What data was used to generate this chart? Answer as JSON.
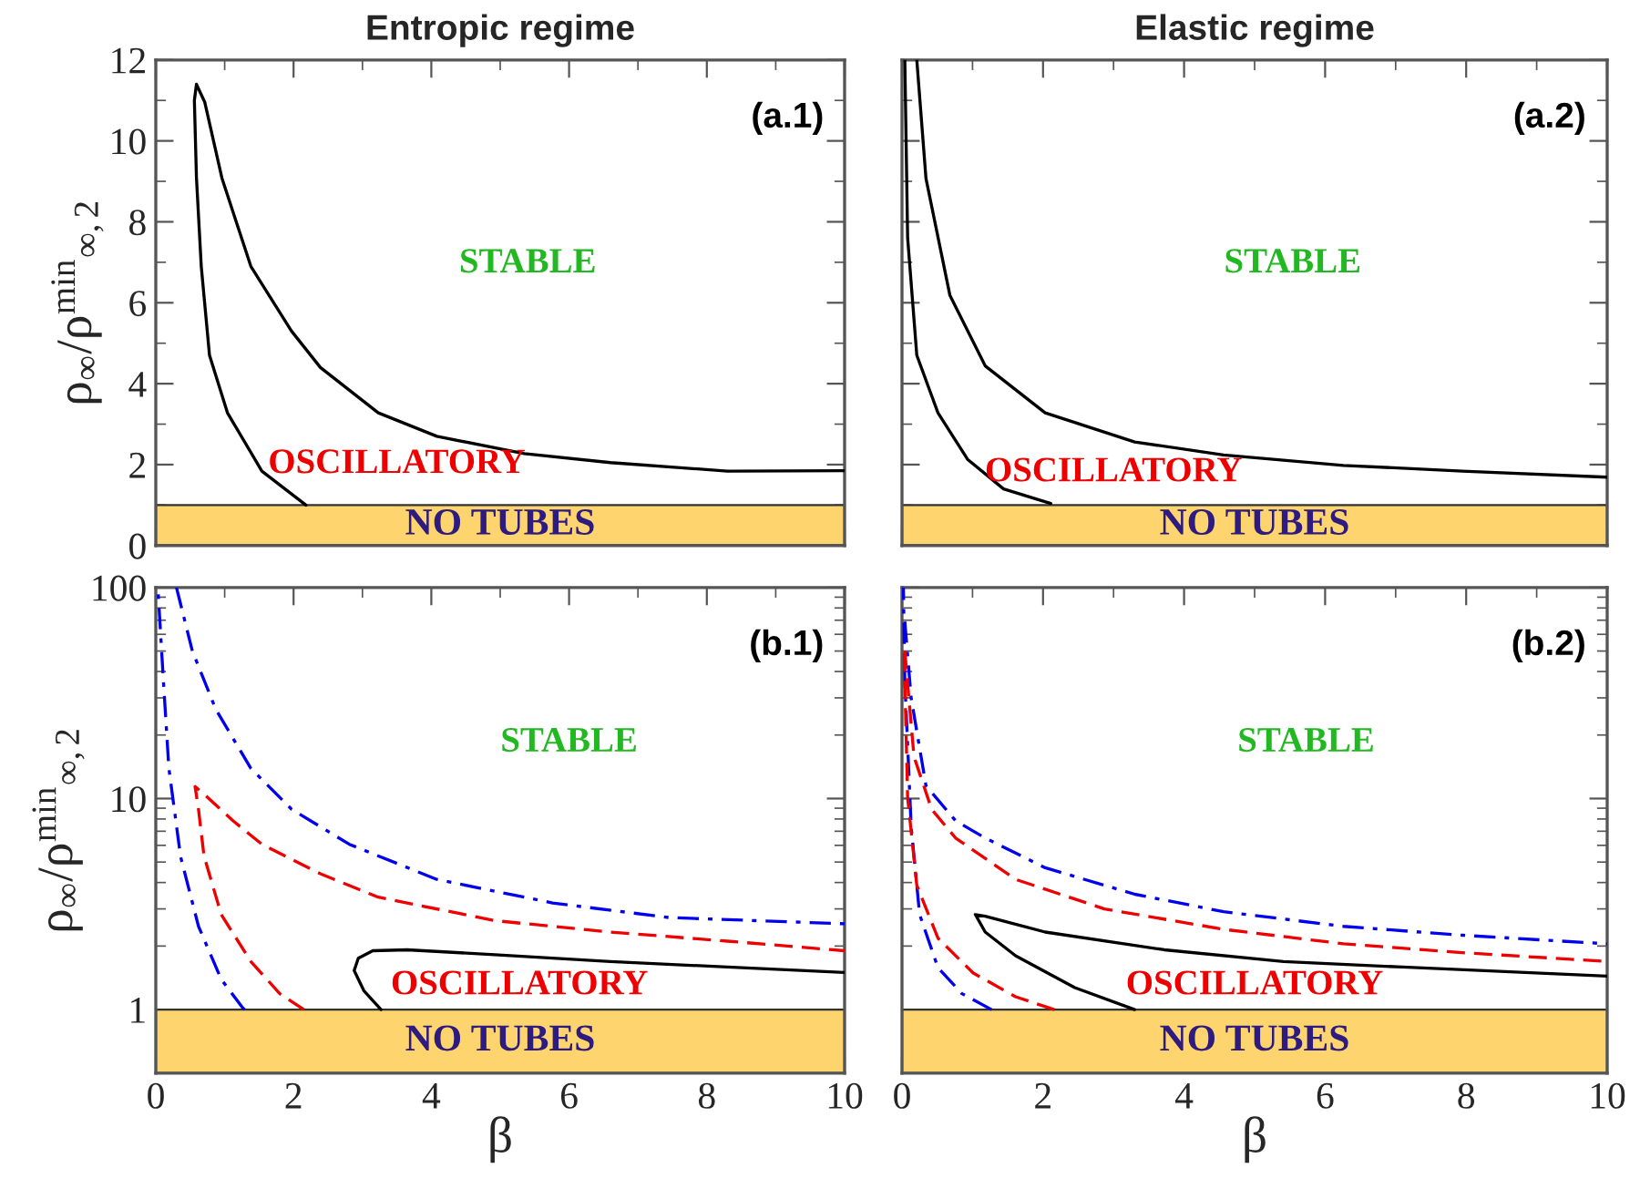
{
  "chart_data": [
    {
      "type": "line",
      "title": "Entropic regime",
      "ylabel": "ρ$_{∞}$/ρ$^{min}$$_{∞,2}$",
      "xlim": [
        0,
        10
      ],
      "ylim": [
        0,
        12
      ],
      "xticks": [
        0,
        2,
        4,
        6,
        8,
        10
      ],
      "yticks": [
        0,
        2,
        4,
        6,
        8,
        10,
        12
      ],
      "tick_labels": "y",
      "grid": false,
      "legend": false,
      "series": [
        {
          "color": "#000000",
          "line_style": "solid",
          "x": [
            2.18,
            1.54,
            1.04,
            0.78,
            0.66,
            0.59,
            0.56,
            0.59,
            0.71,
            0.96,
            1.38,
            1.97,
            2.39,
            3.23,
            4.08,
            5.35,
            6.6,
            8.3,
            10
          ],
          "values": [
            1.0,
            1.84,
            3.28,
            4.7,
            6.9,
            9.1,
            11.0,
            11.4,
            10.96,
            9.08,
            6.9,
            5.3,
            4.4,
            3.28,
            2.7,
            2.27,
            2.05,
            1.84,
            1.85
          ]
        }
      ],
      "bands": [
        {
          "axis": "y",
          "from": 0,
          "to": 1,
          "label": "NO TUBES",
          "color": "#fdd46e"
        }
      ],
      "annotations": [
        "(a.1)",
        "STABLE",
        "OSCILLATORY"
      ]
    },
    {
      "type": "line",
      "title": "Elastic regime",
      "xlim": [
        0,
        10
      ],
      "ylim": [
        0,
        12
      ],
      "xticks": [
        0,
        2,
        4,
        6,
        8,
        10
      ],
      "yticks": [
        0,
        2,
        4,
        6,
        8,
        10,
        12
      ],
      "tick_labels": false,
      "grid": false,
      "legend": false,
      "series": [
        {
          "color": "#000000",
          "line_style": "solid",
          "x": [
            2.11,
            1.44,
            0.93,
            0.51,
            0.21,
            0.08,
            0.04,
            null,
            0.21,
            0.34,
            0.68,
            1.18,
            2.03,
            3.3,
            4.56,
            6.26,
            7.95,
            10
          ],
          "values": [
            1.04,
            1.4,
            2.13,
            3.28,
            4.7,
            7.6,
            12,
            null,
            12,
            9.07,
            6.18,
            4.44,
            3.28,
            2.56,
            2.24,
            1.98,
            1.84,
            1.69
          ]
        }
      ],
      "bands": [
        {
          "axis": "y",
          "from": 0,
          "to": 1,
          "label": "NO TUBES",
          "color": "#fdd46e"
        }
      ],
      "annotations": [
        "(a.2)",
        "STABLE",
        "OSCILLATORY"
      ]
    },
    {
      "type": "line",
      "xlabel": "β",
      "ylabel": "ρ$_{∞}$/ρ$^{min}$$_{∞,2}$",
      "log": "y",
      "xlim": [
        0,
        10
      ],
      "ylim": [
        0.5,
        100
      ],
      "xticks": [
        0,
        2,
        4,
        6,
        8,
        10
      ],
      "yticks": [
        1,
        10,
        100
      ],
      "grid": false,
      "legend": false,
      "series": [
        {
          "color": "#0000ee",
          "line_style": "dashdot",
          "x": [
            1.29,
            1.25,
            0.95,
            0.62,
            0.36,
            0.19,
            0.11,
            0.03,
            null,
            0.3,
            0.53,
            0.87,
            1.38,
            1.97,
            2.81,
            4.08,
            5.76,
            7.45,
            10
          ],
          "values": [
            1.0,
            1.03,
            1.39,
            2.48,
            5.3,
            13.9,
            36.3,
            100,
            null,
            100,
            50.1,
            26.5,
            13.9,
            8.9,
            6.07,
            4.14,
            3.2,
            2.73,
            2.55
          ]
        },
        {
          "color": "#ee0000",
          "line_style": "dashed",
          "x": [
            2.15,
            1.8,
            1.38,
            0.95,
            0.7,
            0.62,
            0.57,
            0.7,
            1.12,
            1.54,
            2.39,
            3.23,
            4.92,
            6.6,
            8.3,
            10
          ],
          "values": [
            1.0,
            1.19,
            1.69,
            2.82,
            5.34,
            8.9,
            11.4,
            10.5,
            7.85,
            6.07,
            4.4,
            3.41,
            2.64,
            2.33,
            2.11,
            1.9
          ]
        },
        {
          "color": "#000000",
          "line_style": "solid",
          "x": [
            3.27,
            3.02,
            2.88,
            2.94,
            3.15,
            3.65,
            4.92,
            6.6,
            8.3,
            10
          ],
          "values": [
            1.0,
            1.23,
            1.53,
            1.75,
            1.9,
            1.92,
            1.82,
            1.69,
            1.59,
            1.5
          ]
        }
      ],
      "bands": [
        {
          "axis": "y",
          "from": 0.5,
          "to": 1,
          "label": "NO TUBES",
          "color": "#fdd46e"
        }
      ],
      "annotations": [
        "(b.1)",
        "STABLE",
        "OSCILLATORY"
      ]
    },
    {
      "type": "line",
      "xlabel": "β",
      "log": "y",
      "xlim": [
        0,
        10
      ],
      "ylim": [
        0.5,
        100
      ],
      "xticks": [
        0,
        2,
        4,
        6,
        8,
        10
      ],
      "yticks": [
        1,
        10,
        100
      ],
      "tick_labels": "x",
      "grid": false,
      "legend": false,
      "series": [
        {
          "color": "#0000ee",
          "line_style": "dashdot",
          "x": [
            1.27,
            0.85,
            0.51,
            0.25,
            0.13,
            0.04,
            0.02,
            null,
            0.04,
            0.13,
            0.34,
            0.76,
            1.18,
            2.03,
            3.3,
            4.56,
            6.26,
            7.95,
            10
          ],
          "values": [
            1.0,
            1.19,
            1.58,
            2.82,
            7.37,
            36.3,
            100,
            null,
            69,
            30,
            11.5,
            7.85,
            6.5,
            4.7,
            3.52,
            2.91,
            2.48,
            2.25,
            2.05
          ]
        },
        {
          "color": "#ee0000",
          "line_style": "dashed",
          "x": [
            2.16,
            1.61,
            1.01,
            0.51,
            0.21,
            0.08,
            0.03,
            null,
            0.04,
            0.17,
            0.42,
            0.76,
            1.61,
            2.87,
            4.56,
            6.26,
            7.95,
            10
          ],
          "values": [
            1.0,
            1.15,
            1.49,
            2.18,
            3.88,
            10.1,
            50,
            null,
            50,
            15.8,
            8.9,
            6.5,
            4.14,
            3.0,
            2.4,
            2.05,
            1.86,
            1.69
          ]
        },
        {
          "color": "#000000",
          "line_style": "solid",
          "x": [
            3.3,
            2.45,
            1.61,
            1.18,
            1.04,
            1.18,
            2.03,
            3.72,
            5.41,
            7.1,
            10
          ],
          "values": [
            1.0,
            1.27,
            1.8,
            2.33,
            2.82,
            2.77,
            2.33,
            1.92,
            1.69,
            1.59,
            1.44
          ]
        }
      ],
      "bands": [
        {
          "axis": "y",
          "from": 0.5,
          "to": 1,
          "label": "NO TUBES",
          "color": "#fdd46e"
        }
      ],
      "annotations": [
        "(b.2)",
        "STABLE",
        "OSCILLATORY"
      ]
    }
  ]
}
